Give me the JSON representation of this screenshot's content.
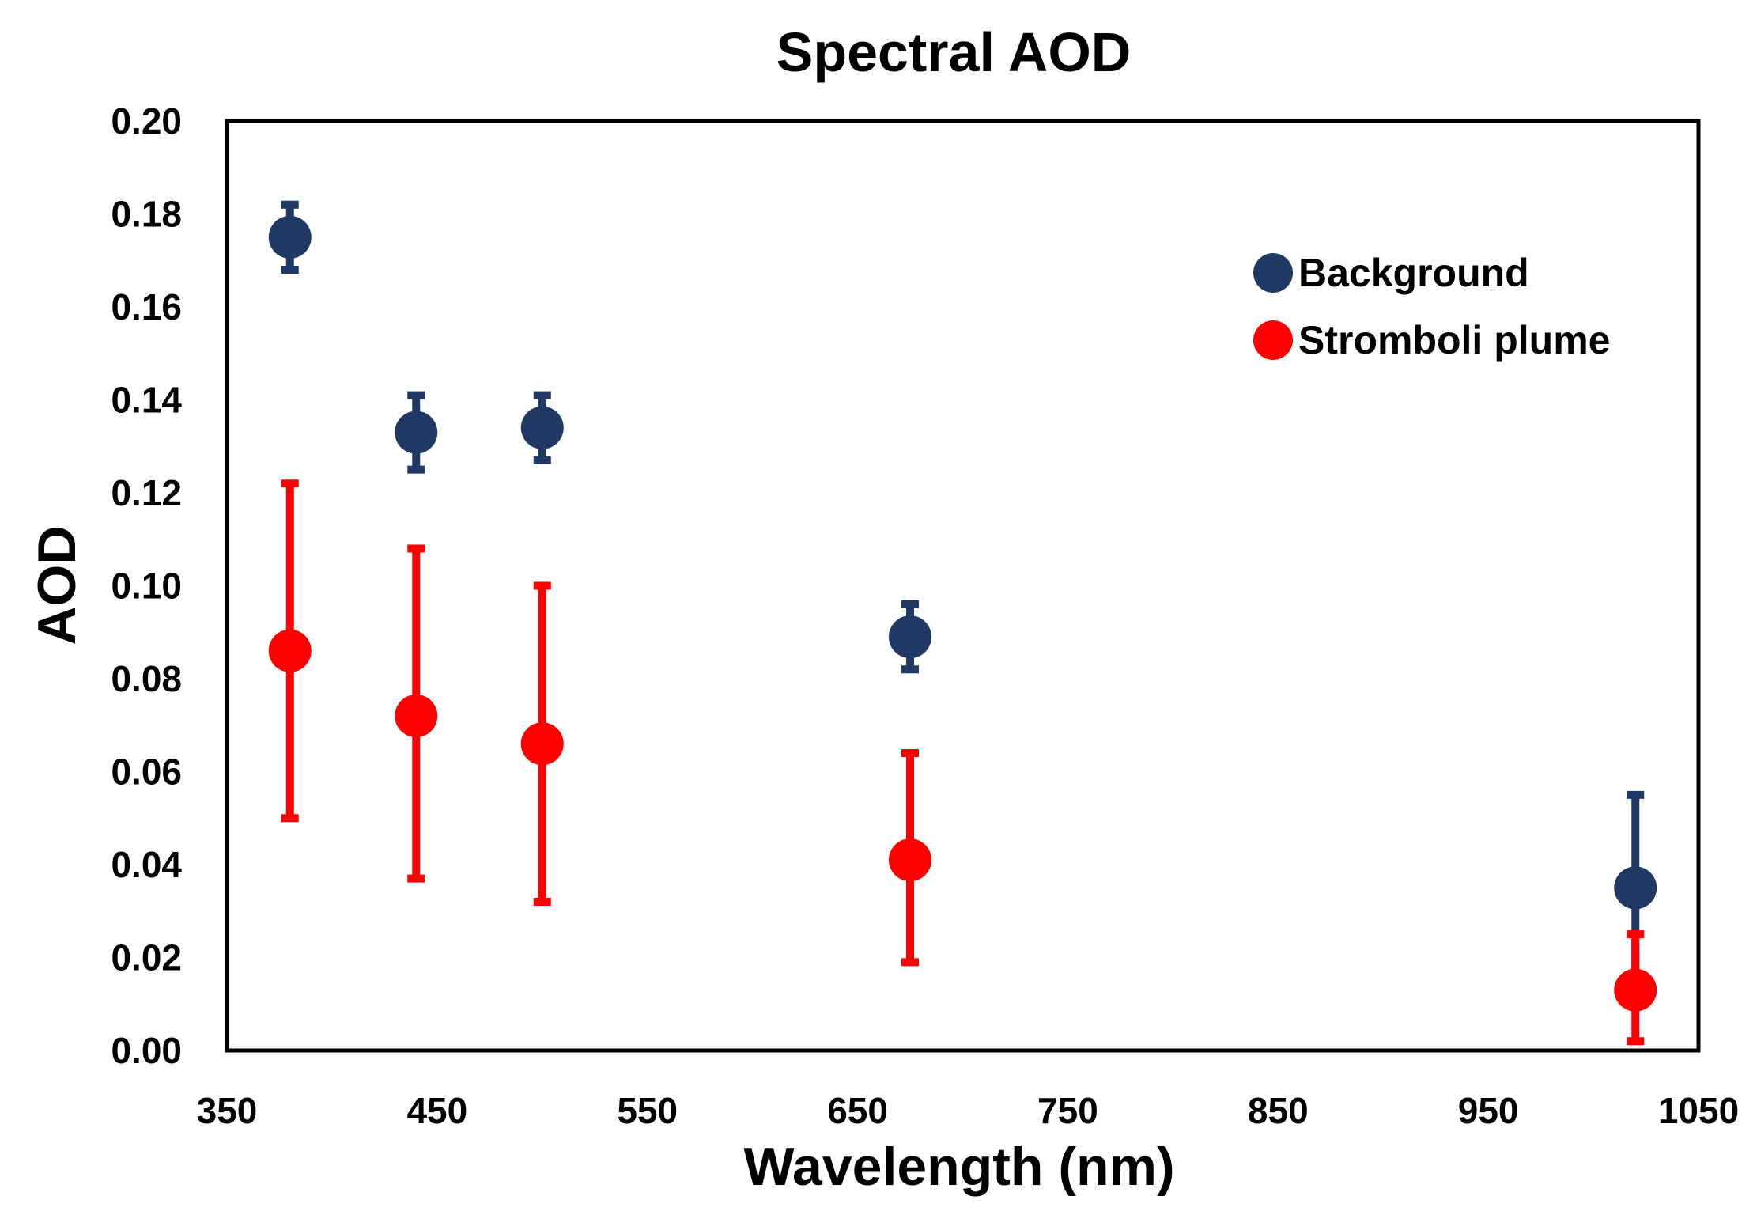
{
  "chart_data": {
    "type": "scatter",
    "title": "Spectral AOD",
    "xlabel": "Wavelength (nm)",
    "ylabel": "AOD",
    "xlim": [
      350,
      1050
    ],
    "ylim": [
      0,
      0.2
    ],
    "x_ticks": [
      350,
      450,
      550,
      650,
      750,
      850,
      950,
      1050
    ],
    "x_tick_labels": [
      "350",
      "450",
      "550",
      "650",
      "750",
      "850",
      "950",
      "1050"
    ],
    "y_ticks": [
      0,
      0.02,
      0.04,
      0.06,
      0.08,
      0.1,
      0.12,
      0.14,
      0.16,
      0.18,
      0.2
    ],
    "y_tick_labels": [
      "0.00",
      "0.02",
      "0.04",
      "0.06",
      "0.08",
      "0.10",
      "0.12",
      "0.14",
      "0.16",
      "0.18",
      "0.20"
    ],
    "grid": false,
    "legend_position": "top-right",
    "series": [
      {
        "name": "Background",
        "color": "#1f3864",
        "x": [
          380,
          440,
          500,
          675,
          1020
        ],
        "y": [
          0.175,
          0.133,
          0.134,
          0.089,
          0.035
        ],
        "error_low": [
          0.168,
          0.125,
          0.127,
          0.082,
          0.015
        ],
        "error_high": [
          0.182,
          0.141,
          0.141,
          0.096,
          0.055
        ]
      },
      {
        "name": "Stromboli plume",
        "color": "#ff0000",
        "x": [
          380,
          440,
          500,
          675,
          1020
        ],
        "y": [
          0.086,
          0.072,
          0.066,
          0.041,
          0.013
        ],
        "error_low": [
          0.05,
          0.037,
          0.032,
          0.019,
          0.002
        ],
        "error_high": [
          0.122,
          0.108,
          0.1,
          0.064,
          0.025
        ]
      }
    ]
  }
}
